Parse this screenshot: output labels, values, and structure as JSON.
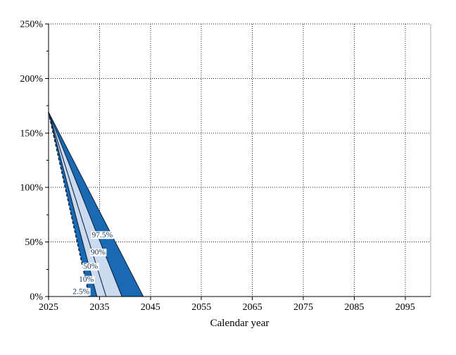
{
  "colors": {
    "band_dark": "#1A6AB3",
    "band_light": "#CBDBEF",
    "line": "#0F2440",
    "label_text": "#17375E",
    "grid": "#1A1A1A",
    "axis": "#000000",
    "right_border": "#ABABAB",
    "background": "#FFFFFF",
    "label_box": "#FFFFFF"
  },
  "chart_data": {
    "type": "area",
    "subtype": "percentile-fan",
    "title": "",
    "xlabel": "Calendar year",
    "ylabel": "",
    "grid": "dotted, vertical every 10 years, horizontal every 50%",
    "legend_position": "none",
    "x_axis": {
      "title": "Calendar year",
      "min": 2025,
      "max": 2100,
      "ticks": [
        2025,
        2035,
        2045,
        2055,
        2065,
        2075,
        2085,
        2095
      ]
    },
    "y_axis": {
      "min": 0,
      "max": 250,
      "suffix": "%",
      "major_ticks": [
        0,
        50,
        100,
        150,
        200,
        250
      ],
      "minor_ticks": [
        25,
        75,
        125,
        175,
        225
      ]
    },
    "series_start": {
      "year": 2025,
      "value": 169
    },
    "percentiles": [
      {
        "label": "2.5%",
        "start_value": 169,
        "zero_year": 2033.0,
        "style": "dashed",
        "label_at_value": 5
      },
      {
        "label": "10%",
        "start_value": 169,
        "zero_year": 2034.5,
        "style": "solid",
        "label_at_value": 16
      },
      {
        "label": "50%",
        "start_value": 169,
        "zero_year": 2036.3,
        "style": "solid",
        "label_at_value": 28
      },
      {
        "label": "90%",
        "start_value": 169,
        "zero_year": 2039.4,
        "style": "solid",
        "label_at_value": 41
      },
      {
        "label": "97.5%",
        "start_value": 169,
        "zero_year": 2043.6,
        "style": "solid",
        "label_at_value": 57
      }
    ],
    "bands": [
      {
        "from": 0,
        "to": 1,
        "shade": "dark"
      },
      {
        "from": 1,
        "to": 3,
        "shade": "light"
      },
      {
        "from": 3,
        "to": 4,
        "shade": "dark"
      }
    ]
  }
}
